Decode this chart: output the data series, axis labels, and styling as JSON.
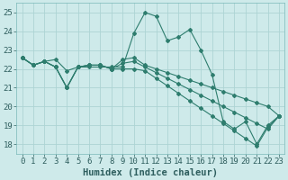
{
  "xlabel": "Humidex (Indice chaleur)",
  "background_color": "#ceeaea",
  "grid_color": "#add4d4",
  "line_color": "#2e7d6e",
  "xlim": [
    -0.5,
    23.5
  ],
  "ylim": [
    17.5,
    25.5
  ],
  "yticks": [
    18,
    19,
    20,
    21,
    22,
    23,
    24,
    25
  ],
  "xticks": [
    0,
    1,
    2,
    3,
    4,
    5,
    6,
    7,
    8,
    9,
    10,
    11,
    12,
    13,
    14,
    15,
    16,
    17,
    18,
    19,
    20,
    21,
    22,
    23
  ],
  "xlabel_fontsize": 7.5,
  "tick_fontsize": 6.5,
  "line1_y": [
    22.6,
    22.2,
    22.4,
    22.5,
    21.9,
    22.1,
    22.1,
    22.1,
    22.1,
    22.1,
    23.9,
    25.0,
    24.8,
    23.5,
    23.7,
    24.1,
    23.0,
    21.7,
    19.2,
    18.8,
    19.2,
    18.0,
    19.0,
    19.5
  ],
  "line2_y": [
    22.6,
    22.2,
    22.4,
    22.1,
    21.0,
    22.1,
    22.2,
    22.2,
    22.0,
    22.5,
    22.6,
    22.2,
    22.0,
    21.8,
    21.6,
    21.4,
    21.2,
    21.0,
    20.8,
    20.6,
    20.4,
    20.2,
    20.0,
    19.5
  ],
  "line3_y": [
    22.6,
    22.2,
    22.4,
    22.1,
    21.0,
    22.1,
    22.2,
    22.2,
    22.0,
    22.3,
    22.4,
    22.1,
    21.8,
    21.5,
    21.2,
    20.9,
    20.6,
    20.3,
    20.0,
    19.7,
    19.4,
    19.1,
    18.8,
    19.5
  ],
  "line4_y": [
    22.6,
    22.2,
    22.4,
    22.1,
    21.0,
    22.1,
    22.2,
    22.2,
    22.0,
    22.0,
    22.0,
    21.9,
    21.5,
    21.1,
    20.7,
    20.3,
    19.9,
    19.5,
    19.1,
    18.7,
    18.3,
    17.9,
    18.9,
    19.5
  ]
}
